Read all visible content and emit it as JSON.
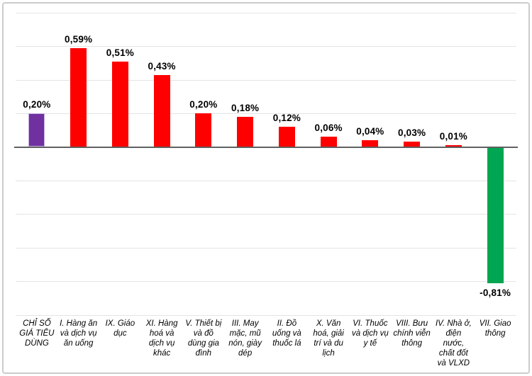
{
  "chart_data": {
    "type": "bar",
    "title": "",
    "categories": [
      "CHỈ SỐ\nGIÁ TIÊU\nDÙNG",
      "I. Hàng ăn\nvà dịch vụ\năn uống",
      "IX. Giáo\ndục",
      "XI. Hàng\nhoá và\ndịch vụ\nkhác",
      "V. Thiết bị\nvà đồ\ndùng gia\nđình",
      "III. May\nmặc, mũ\nnón, giày\ndép",
      "II. Đồ\nuống và\nthuốc lá",
      "X. Văn\nhoá, giải\ntrí và du\nlịch",
      "VI. Thuốc\nvà dịch vụ\ny tế",
      "VIII. Bưu\nchính viễn\nthông",
      "IV. Nhà ở,\nđiện\nnước,\nchất đốt\nvà VLXD",
      "VII. Giao\nthông"
    ],
    "values": [
      0.2,
      0.59,
      0.51,
      0.43,
      0.2,
      0.18,
      0.12,
      0.06,
      0.04,
      0.03,
      0.01,
      -0.81
    ],
    "value_labels": [
      "0,20%",
      "0,59%",
      "0,51%",
      "0,43%",
      "0,20%",
      "0,18%",
      "0,12%",
      "0,06%",
      "0,04%",
      "0,03%",
      "0,01%",
      "-0,81%"
    ],
    "bar_colors": [
      "#7030A0",
      "#FF0000",
      "#FF0000",
      "#FF0000",
      "#FF0000",
      "#FF0000",
      "#FF0000",
      "#FF0000",
      "#FF0000",
      "#FF0000",
      "#FF0000",
      "#00A651"
    ],
    "purple_bar_border": "#C4ADDE",
    "xlabel": "",
    "ylabel": "",
    "ylim": [
      -1.0,
      0.8
    ],
    "grid_step": 0.2,
    "grid": true,
    "legend": false
  },
  "colors": {
    "grid": "#E4E4E4",
    "axis": "#606060",
    "frame_border": "#CCCCCC",
    "background": "#FFFFFF"
  }
}
